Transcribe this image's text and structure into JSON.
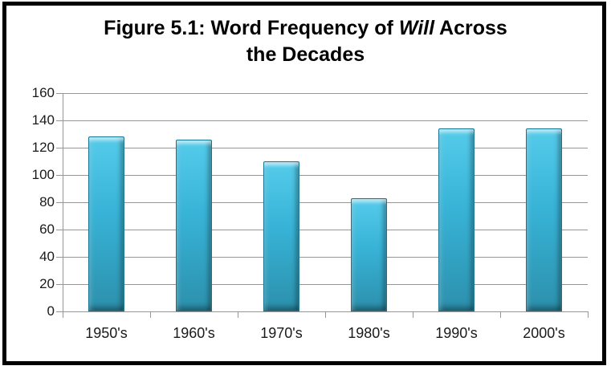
{
  "title": {
    "line1_pre": "Figure 5.1: Word Frequency of ",
    "line1_italic": "Will",
    "line1_post": " Across",
    "line2": "the Decades",
    "full": "Figure 5.1: Word Frequency of Will Across the Decades"
  },
  "chart_data": {
    "type": "bar",
    "title": "Figure 5.1: Word Frequency of Will Across the Decades",
    "categories": [
      "1950's",
      "1960's",
      "1970's",
      "1980's",
      "1990's",
      "2000's"
    ],
    "values": [
      128,
      126,
      110,
      83,
      134,
      134
    ],
    "ylim": [
      0,
      160
    ],
    "yticks": [
      0,
      20,
      40,
      60,
      80,
      100,
      120,
      140,
      160
    ],
    "xlabel": "",
    "ylabel": "",
    "grid": true,
    "legend": false,
    "colors": {
      "bar_top": "#55CBEA",
      "bar_mid": "#38B4D8",
      "bar_bottom": "#2C90AC",
      "bar_border": "#17768F",
      "gridline": "#969696",
      "axis": "#969696",
      "text": "#000000",
      "frame_border": "#000000",
      "background": "#FFFFFF"
    }
  }
}
